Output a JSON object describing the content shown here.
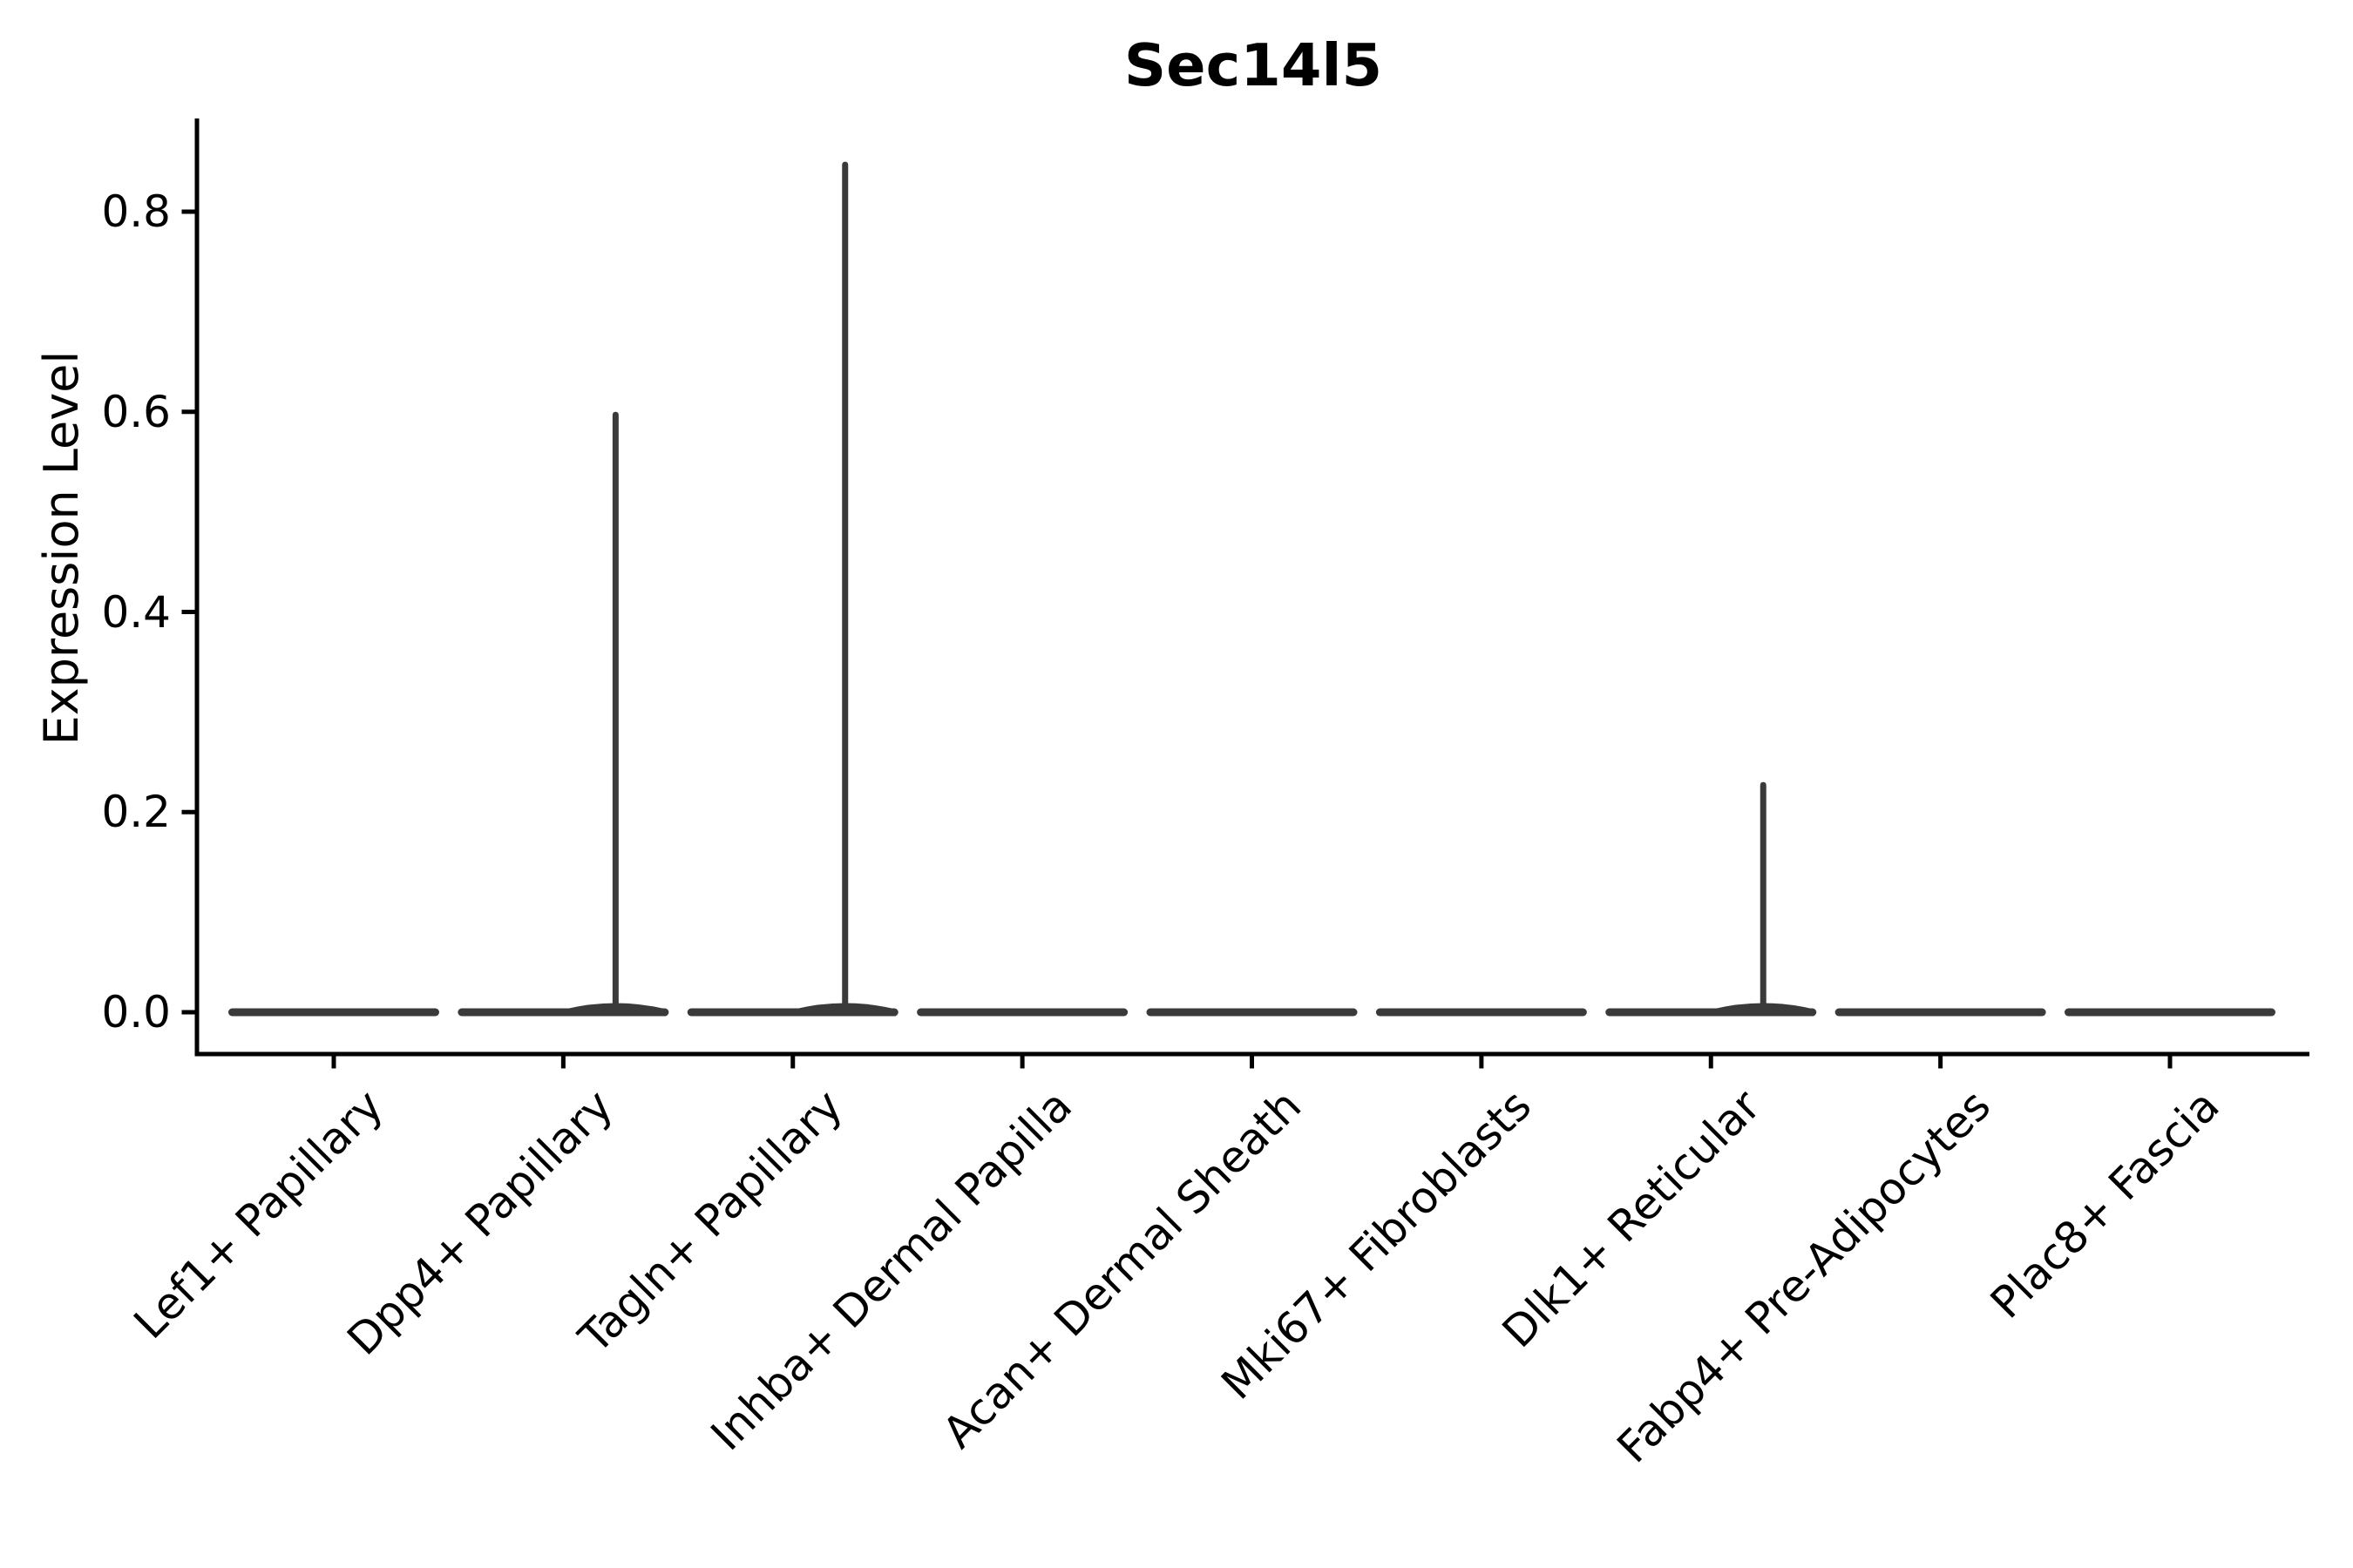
{
  "figure": {
    "title": "Sec14l5",
    "y_axis": {
      "label": "Expression Level",
      "tick_labels": [
        "0.0",
        "0.2",
        "0.4",
        "0.6",
        "0.8"
      ]
    }
  },
  "chart_data": {
    "type": "violin",
    "title": "Sec14l5",
    "xlabel": "",
    "ylabel": "Expression Level",
    "legend": "none",
    "grid": false,
    "yticks": [
      0.0,
      0.2,
      0.4,
      0.6,
      0.8
    ],
    "ylim": [
      -0.042,
      0.89
    ],
    "violin_color": "#3a3a3a",
    "axis_color": "#000000",
    "categories": [
      "Lef1+ Papillary",
      "Dpp4+ Papillary",
      "Tagln+ Papillary",
      "Inhba+ Dermal Papilla",
      "Acan+ Dermal Sheath",
      "Mki67+ Fibroblasts",
      "Dlk1+ Reticular",
      "Fabp4+ Pre-Adipocytes",
      "Plac8+ Fascia"
    ],
    "series": [
      {
        "name": "Expression Level",
        "description": "Violin per cell type; expression is ~0 for nearly all cells (violins collapse to flat bars at 0), with thin tails up to the max expression in three cell types.",
        "medians": [
          0,
          0,
          0,
          0,
          0,
          0,
          0,
          0,
          0
        ],
        "max_values": [
          0,
          0.6,
          0.85,
          0,
          0,
          0,
          0.23,
          0,
          0
        ]
      }
    ]
  }
}
